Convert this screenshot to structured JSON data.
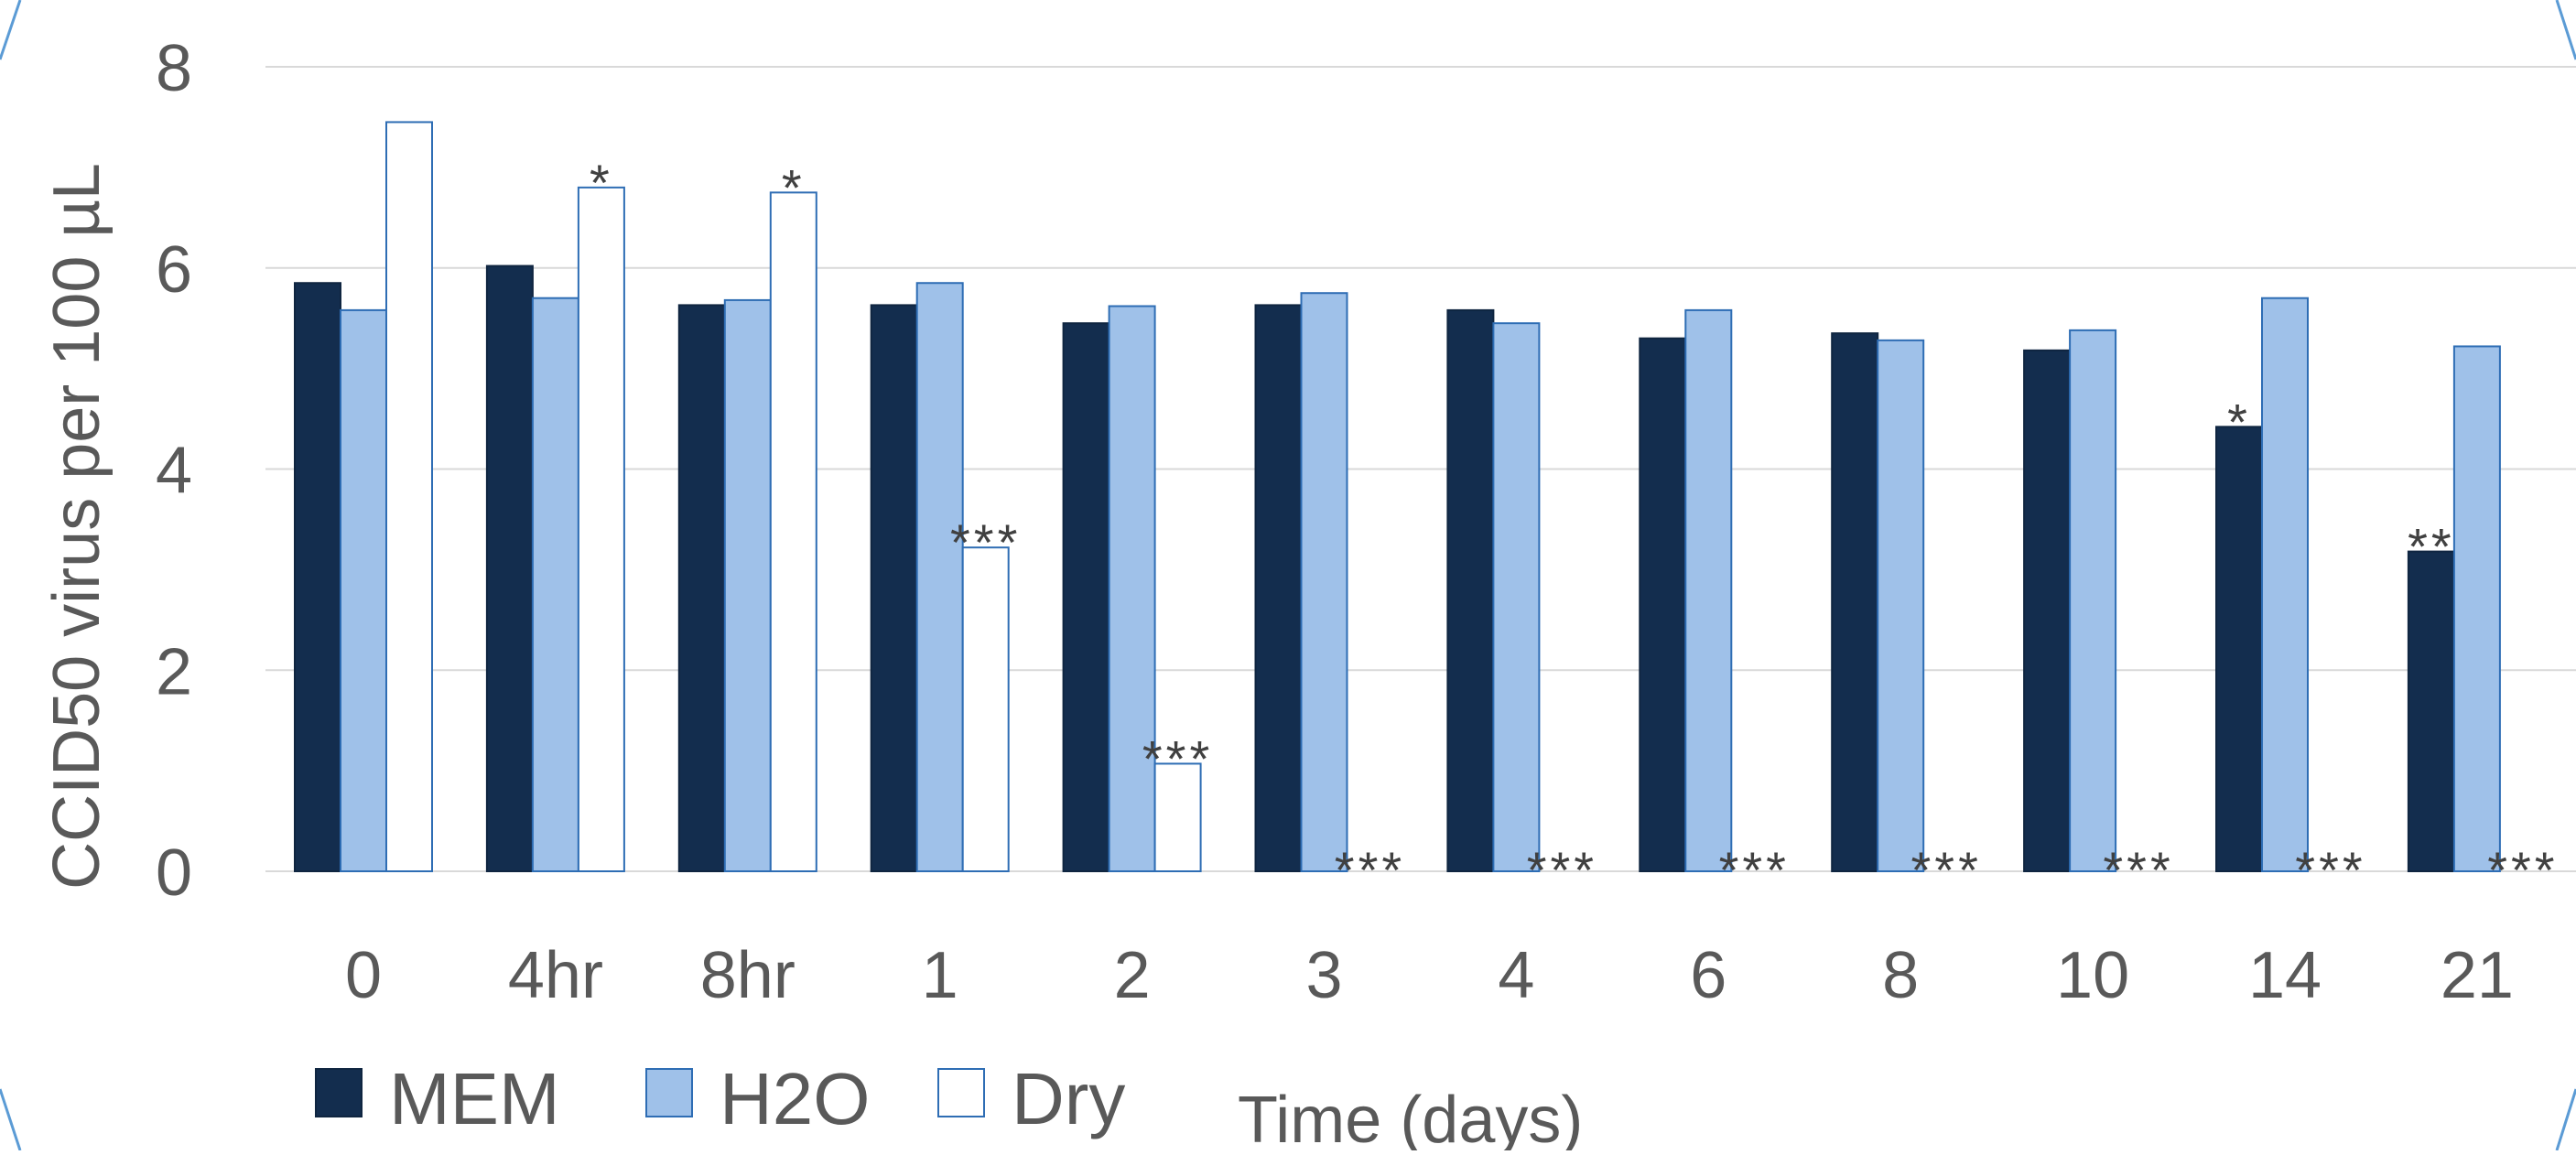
{
  "chart_data": {
    "type": "bar",
    "title": "",
    "xlabel": "Time (days)",
    "ylabel": "CCID50 virus per 100 µL",
    "ylim": [
      0,
      8
    ],
    "yticks": [
      "0",
      "2",
      "4",
      "6",
      "8"
    ],
    "grid": true,
    "legend_position": "bottom-left",
    "categories": [
      "0",
      "4hr",
      "8hr",
      "1",
      "2",
      "3",
      "4",
      "6",
      "8",
      "10",
      "14",
      "21"
    ],
    "series": [
      {
        "name": "MEM",
        "color": "#132D4E",
        "values": [
          5.85,
          6.02,
          5.63,
          5.63,
          5.45,
          5.63,
          5.58,
          5.3,
          5.35,
          5.18,
          4.42,
          3.18
        ]
      },
      {
        "name": "H2O",
        "color": "#9FC1E9",
        "values": [
          5.58,
          5.7,
          5.68,
          5.85,
          5.62,
          5.75,
          5.45,
          5.58,
          5.28,
          5.38,
          5.7,
          5.22
        ]
      },
      {
        "name": "Dry",
        "color": "#FFFFFF",
        "values": [
          7.45,
          6.8,
          6.75,
          3.22,
          1.07,
          0,
          0,
          0,
          0,
          0,
          null,
          0
        ]
      }
    ],
    "annotations": [
      {
        "category": "4hr",
        "series": "Dry",
        "text": "*"
      },
      {
        "category": "8hr",
        "series": "Dry",
        "text": "*"
      },
      {
        "category": "1",
        "series": "Dry",
        "text": "***"
      },
      {
        "category": "2",
        "series": "Dry",
        "text": "***"
      },
      {
        "category": "3",
        "series": "Dry",
        "text": "***"
      },
      {
        "category": "4",
        "series": "Dry",
        "text": "***"
      },
      {
        "category": "6",
        "series": "Dry",
        "text": "***"
      },
      {
        "category": "8",
        "series": "Dry",
        "text": "***"
      },
      {
        "category": "10",
        "series": "Dry",
        "text": "***"
      },
      {
        "category": "14",
        "series": "MEM",
        "text": "*"
      },
      {
        "category": "14",
        "series": "Dry",
        "text": "***"
      },
      {
        "category": "21",
        "series": "MEM",
        "text": "**"
      },
      {
        "category": "21",
        "series": "Dry",
        "text": "***"
      }
    ]
  }
}
